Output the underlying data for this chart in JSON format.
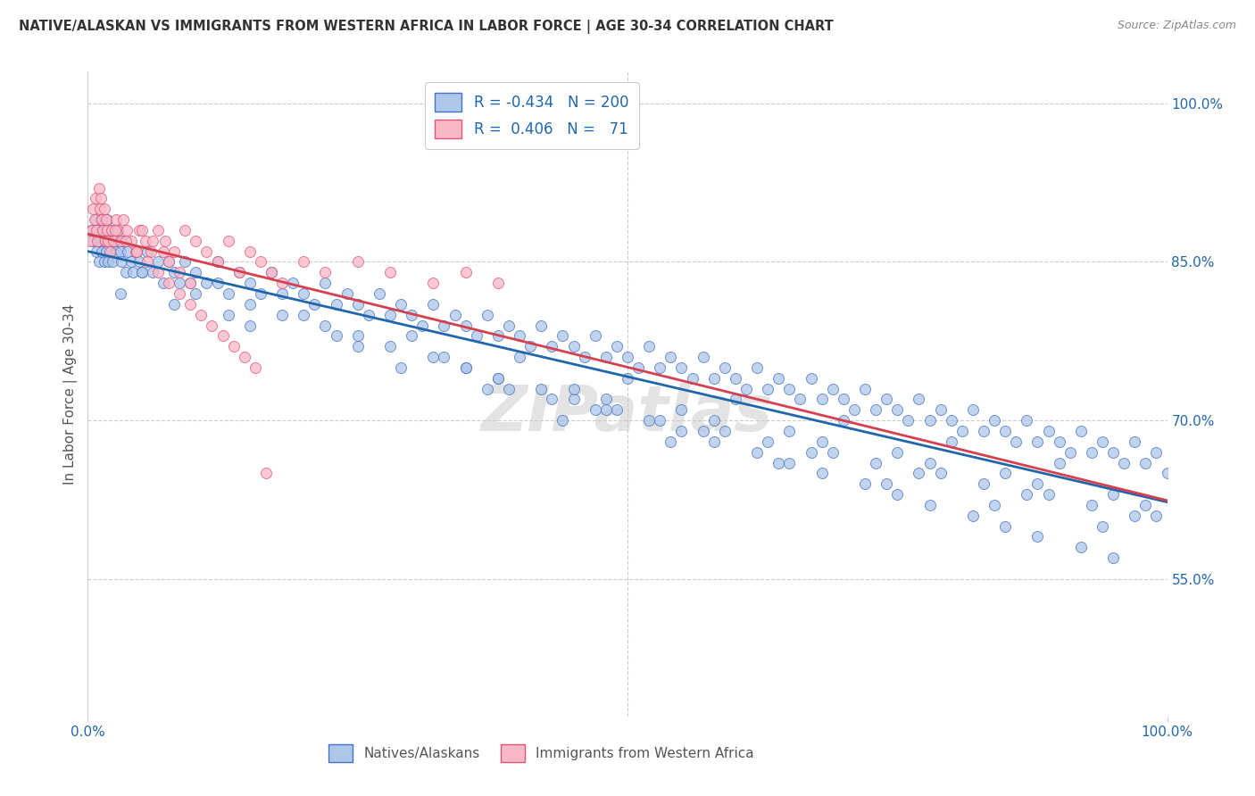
{
  "title": "NATIVE/ALASKAN VS IMMIGRANTS FROM WESTERN AFRICA IN LABOR FORCE | AGE 30-34 CORRELATION CHART",
  "source": "Source: ZipAtlas.com",
  "ylabel": "In Labor Force | Age 30-34",
  "ylabel_right_ticks": [
    "100.0%",
    "85.0%",
    "70.0%",
    "55.0%"
  ],
  "ylabel_right_values": [
    1.0,
    0.85,
    0.7,
    0.55
  ],
  "blue_R": -0.434,
  "blue_N": 200,
  "pink_R": 0.406,
  "pink_N": 71,
  "blue_color": "#aec6e8",
  "blue_edge_color": "#4472c4",
  "pink_color": "#f9b8c8",
  "pink_edge_color": "#e05575",
  "blue_line_color": "#2166ac",
  "pink_line_color": "#d6404e",
  "xlim": [
    0.0,
    1.0
  ],
  "ylim": [
    0.42,
    1.03
  ],
  "watermark": "ZIPatlas",
  "blue_scatter_x": [
    0.003,
    0.005,
    0.007,
    0.008,
    0.009,
    0.01,
    0.01,
    0.012,
    0.013,
    0.014,
    0.015,
    0.015,
    0.016,
    0.017,
    0.018,
    0.018,
    0.019,
    0.02,
    0.021,
    0.022,
    0.023,
    0.025,
    0.026,
    0.028,
    0.03,
    0.031,
    0.033,
    0.035,
    0.037,
    0.04,
    0.042,
    0.045,
    0.048,
    0.05,
    0.055,
    0.06,
    0.065,
    0.07,
    0.075,
    0.08,
    0.085,
    0.09,
    0.095,
    0.1,
    0.11,
    0.12,
    0.13,
    0.14,
    0.15,
    0.16,
    0.17,
    0.18,
    0.19,
    0.2,
    0.21,
    0.22,
    0.23,
    0.24,
    0.25,
    0.26,
    0.27,
    0.28,
    0.29,
    0.3,
    0.31,
    0.32,
    0.33,
    0.34,
    0.35,
    0.36,
    0.37,
    0.38,
    0.39,
    0.4,
    0.41,
    0.42,
    0.43,
    0.44,
    0.45,
    0.46,
    0.47,
    0.48,
    0.49,
    0.5,
    0.51,
    0.52,
    0.53,
    0.54,
    0.55,
    0.56,
    0.57,
    0.58,
    0.59,
    0.6,
    0.61,
    0.62,
    0.63,
    0.64,
    0.65,
    0.66,
    0.67,
    0.68,
    0.69,
    0.7,
    0.71,
    0.72,
    0.73,
    0.74,
    0.75,
    0.76,
    0.77,
    0.78,
    0.79,
    0.8,
    0.81,
    0.82,
    0.83,
    0.84,
    0.85,
    0.86,
    0.87,
    0.88,
    0.89,
    0.9,
    0.91,
    0.92,
    0.93,
    0.94,
    0.95,
    0.96,
    0.97,
    0.98,
    0.99,
    1.0,
    0.12,
    0.15,
    0.18,
    0.22,
    0.25,
    0.28,
    0.32,
    0.35,
    0.38,
    0.42,
    0.45,
    0.48,
    0.52,
    0.55,
    0.58,
    0.62,
    0.65,
    0.68,
    0.72,
    0.75,
    0.78,
    0.82,
    0.85,
    0.88,
    0.92,
    0.95,
    0.3,
    0.4,
    0.5,
    0.6,
    0.7,
    0.8,
    0.9,
    0.2,
    0.1,
    0.05,
    0.45,
    0.55,
    0.65,
    0.75,
    0.85,
    0.95,
    0.35,
    0.25,
    0.15,
    0.08,
    0.43,
    0.53,
    0.63,
    0.73,
    0.83,
    0.93,
    0.38,
    0.48,
    0.58,
    0.68,
    0.78,
    0.88,
    0.98,
    0.33,
    0.23,
    0.13,
    0.03,
    0.37,
    0.47,
    0.57,
    0.67,
    0.77,
    0.87,
    0.97,
    0.44,
    0.54,
    0.64,
    0.74,
    0.84,
    0.94,
    0.29,
    0.39,
    0.49,
    0.59,
    0.69,
    0.79,
    0.89,
    0.99
  ],
  "blue_scatter_y": [
    0.88,
    0.87,
    0.89,
    0.86,
    0.88,
    0.87,
    0.85,
    0.89,
    0.86,
    0.88,
    0.87,
    0.85,
    0.88,
    0.86,
    0.87,
    0.89,
    0.85,
    0.87,
    0.86,
    0.88,
    0.85,
    0.87,
    0.86,
    0.88,
    0.86,
    0.85,
    0.87,
    0.84,
    0.86,
    0.85,
    0.84,
    0.86,
    0.85,
    0.84,
    0.86,
    0.84,
    0.85,
    0.83,
    0.85,
    0.84,
    0.83,
    0.85,
    0.83,
    0.84,
    0.83,
    0.85,
    0.82,
    0.84,
    0.83,
    0.82,
    0.84,
    0.82,
    0.83,
    0.82,
    0.81,
    0.83,
    0.81,
    0.82,
    0.81,
    0.8,
    0.82,
    0.8,
    0.81,
    0.8,
    0.79,
    0.81,
    0.79,
    0.8,
    0.79,
    0.78,
    0.8,
    0.78,
    0.79,
    0.78,
    0.77,
    0.79,
    0.77,
    0.78,
    0.77,
    0.76,
    0.78,
    0.76,
    0.77,
    0.76,
    0.75,
    0.77,
    0.75,
    0.76,
    0.75,
    0.74,
    0.76,
    0.74,
    0.75,
    0.74,
    0.73,
    0.75,
    0.73,
    0.74,
    0.73,
    0.72,
    0.74,
    0.72,
    0.73,
    0.72,
    0.71,
    0.73,
    0.71,
    0.72,
    0.71,
    0.7,
    0.72,
    0.7,
    0.71,
    0.7,
    0.69,
    0.71,
    0.69,
    0.7,
    0.69,
    0.68,
    0.7,
    0.68,
    0.69,
    0.68,
    0.67,
    0.69,
    0.67,
    0.68,
    0.67,
    0.66,
    0.68,
    0.66,
    0.67,
    0.65,
    0.83,
    0.81,
    0.8,
    0.79,
    0.78,
    0.77,
    0.76,
    0.75,
    0.74,
    0.73,
    0.72,
    0.71,
    0.7,
    0.69,
    0.68,
    0.67,
    0.66,
    0.65,
    0.64,
    0.63,
    0.62,
    0.61,
    0.6,
    0.59,
    0.58,
    0.57,
    0.78,
    0.76,
    0.74,
    0.72,
    0.7,
    0.68,
    0.66,
    0.8,
    0.82,
    0.84,
    0.73,
    0.71,
    0.69,
    0.67,
    0.65,
    0.63,
    0.75,
    0.77,
    0.79,
    0.81,
    0.72,
    0.7,
    0.68,
    0.66,
    0.64,
    0.62,
    0.74,
    0.72,
    0.7,
    0.68,
    0.66,
    0.64,
    0.62,
    0.76,
    0.78,
    0.8,
    0.82,
    0.73,
    0.71,
    0.69,
    0.67,
    0.65,
    0.63,
    0.61,
    0.7,
    0.68,
    0.66,
    0.64,
    0.62,
    0.6,
    0.75,
    0.73,
    0.71,
    0.69,
    0.67,
    0.65,
    0.63,
    0.61
  ],
  "pink_scatter_x": [
    0.002,
    0.004,
    0.005,
    0.006,
    0.007,
    0.008,
    0.009,
    0.01,
    0.011,
    0.012,
    0.013,
    0.014,
    0.015,
    0.016,
    0.017,
    0.018,
    0.019,
    0.02,
    0.022,
    0.024,
    0.026,
    0.028,
    0.03,
    0.033,
    0.036,
    0.04,
    0.044,
    0.048,
    0.053,
    0.058,
    0.065,
    0.072,
    0.08,
    0.09,
    0.1,
    0.11,
    0.12,
    0.13,
    0.14,
    0.15,
    0.16,
    0.17,
    0.18,
    0.2,
    0.22,
    0.25,
    0.28,
    0.32,
    0.35,
    0.38,
    0.05,
    0.06,
    0.07,
    0.075,
    0.085,
    0.095,
    0.025,
    0.035,
    0.045,
    0.055,
    0.065,
    0.075,
    0.085,
    0.095,
    0.105,
    0.115,
    0.125,
    0.135,
    0.145,
    0.155,
    0.165
  ],
  "pink_scatter_y": [
    0.87,
    0.88,
    0.9,
    0.89,
    0.91,
    0.88,
    0.87,
    0.92,
    0.9,
    0.91,
    0.89,
    0.88,
    0.9,
    0.87,
    0.89,
    0.88,
    0.87,
    0.86,
    0.88,
    0.87,
    0.89,
    0.88,
    0.87,
    0.89,
    0.88,
    0.87,
    0.86,
    0.88,
    0.87,
    0.86,
    0.88,
    0.87,
    0.86,
    0.88,
    0.87,
    0.86,
    0.85,
    0.87,
    0.84,
    0.86,
    0.85,
    0.84,
    0.83,
    0.85,
    0.84,
    0.85,
    0.84,
    0.83,
    0.84,
    0.83,
    0.88,
    0.87,
    0.86,
    0.85,
    0.84,
    0.83,
    0.88,
    0.87,
    0.86,
    0.85,
    0.84,
    0.83,
    0.82,
    0.81,
    0.8,
    0.79,
    0.78,
    0.77,
    0.76,
    0.75,
    0.65
  ]
}
